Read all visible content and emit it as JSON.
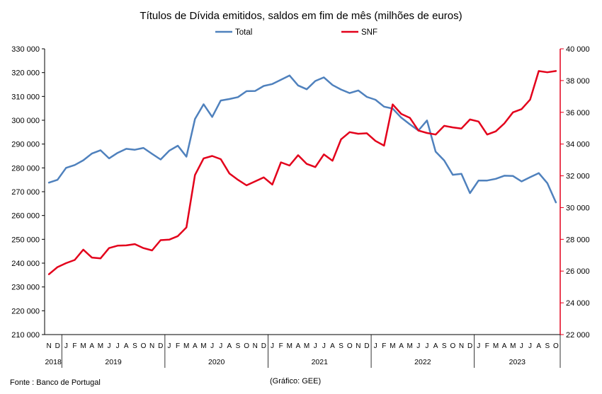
{
  "chart_data": {
    "type": "line",
    "title": "Títulos de Dívida emitidos, saldos em fim de mês  (milhões de euros)",
    "footer_source": "Fonte : Banco de Portugal",
    "footer_credit": "(Gráfico: GEE)",
    "ylim_left": [
      210000,
      330000
    ],
    "ylim_right": [
      22000,
      40000
    ],
    "yticks_left": [
      "210 000",
      "220 000",
      "230 000",
      "240 000",
      "250 000",
      "260 000",
      "270 000",
      "280 000",
      "290 000",
      "300 000",
      "310 000",
      "320 000",
      "330 000"
    ],
    "yticks_right": [
      "22 000",
      "24 000",
      "26 000",
      "28 000",
      "30 000",
      "32 000",
      "34 000",
      "36 000",
      "38 000",
      "40 000"
    ],
    "yticks_left_values": [
      210000,
      220000,
      230000,
      240000,
      250000,
      260000,
      270000,
      280000,
      290000,
      300000,
      310000,
      320000,
      330000
    ],
    "yticks_right_values": [
      22000,
      24000,
      26000,
      28000,
      30000,
      32000,
      34000,
      36000,
      38000,
      40000
    ],
    "categories": [
      "N",
      "D",
      "J",
      "F",
      "M",
      "A",
      "M",
      "J",
      "J",
      "A",
      "S",
      "O",
      "N",
      "D",
      "J",
      "F",
      "M",
      "A",
      "M",
      "J",
      "J",
      "A",
      "S",
      "O",
      "N",
      "D",
      "J",
      "F",
      "M",
      "A",
      "M",
      "J",
      "J",
      "A",
      "S",
      "O",
      "N",
      "D",
      "J",
      "F",
      "M",
      "A",
      "M",
      "J",
      "J",
      "A",
      "S",
      "O",
      "N",
      "D",
      "J",
      "F",
      "M",
      "A",
      "M",
      "J",
      "J",
      "A",
      "S",
      "O"
    ],
    "year_groups": [
      {
        "label": "2018",
        "start": 0,
        "count": 2
      },
      {
        "label": "2019",
        "start": 2,
        "count": 12
      },
      {
        "label": "2020",
        "start": 14,
        "count": 12
      },
      {
        "label": "2021",
        "start": 26,
        "count": 12
      },
      {
        "label": "2022",
        "start": 38,
        "count": 12
      },
      {
        "label": "2023",
        "start": 50,
        "count": 10
      }
    ],
    "legend_position": "top-center",
    "grid": false,
    "series": [
      {
        "name": "Total",
        "axis": "left",
        "color": "#4F81BD",
        "values": [
          273800,
          275000,
          280000,
          281200,
          283200,
          286000,
          287400,
          284000,
          286300,
          288000,
          287600,
          288400,
          285900,
          283500,
          287200,
          289300,
          284700,
          300500,
          306700,
          301400,
          308300,
          308900,
          309700,
          312200,
          312300,
          314400,
          315200,
          317000,
          318800,
          314600,
          313000,
          316500,
          318000,
          314800,
          312900,
          311400,
          312500,
          309800,
          308600,
          305700,
          304900,
          301100,
          298300,
          295700,
          299900,
          286800,
          283100,
          277100,
          277500,
          269400,
          274700,
          274700,
          275400,
          276700,
          276600,
          274300,
          276100,
          277800,
          273600,
          265500
        ]
      },
      {
        "name": "SNF",
        "axis": "right",
        "color": "#E3001B",
        "values": [
          25800,
          26250,
          26500,
          26700,
          27350,
          26850,
          26800,
          27450,
          27600,
          27620,
          27700,
          27450,
          27300,
          27950,
          27980,
          28200,
          28750,
          32050,
          33100,
          33250,
          33050,
          32150,
          31750,
          31400,
          31650,
          31900,
          31450,
          32850,
          32650,
          33300,
          32750,
          32550,
          33350,
          32950,
          34300,
          34750,
          34650,
          34680,
          34200,
          33900,
          36500,
          35900,
          35650,
          34850,
          34700,
          34600,
          35150,
          35050,
          34980,
          35550,
          35420,
          34600,
          34800,
          35300,
          36000,
          36200,
          36800,
          38600,
          38520,
          38600
        ]
      }
    ]
  }
}
